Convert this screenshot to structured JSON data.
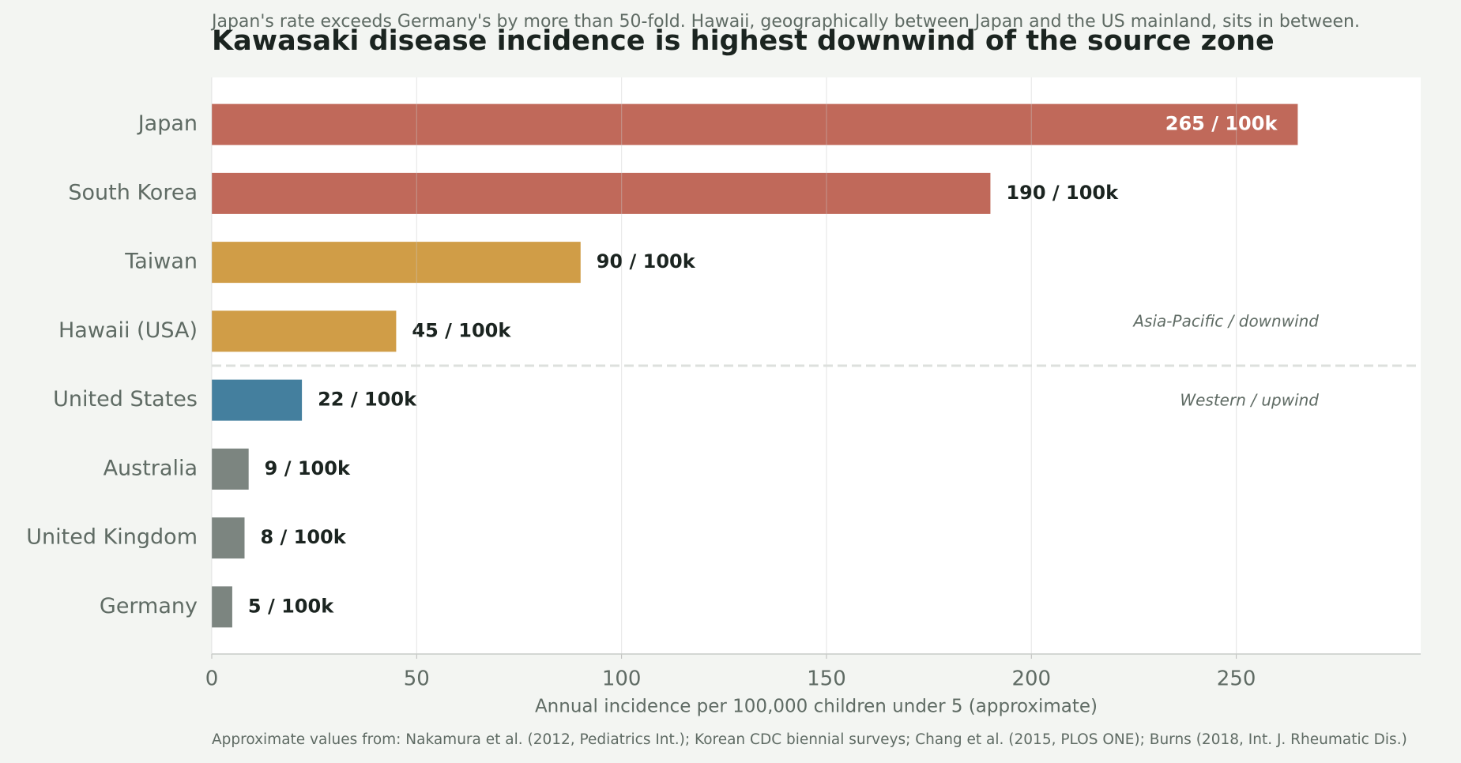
{
  "chart_data": {
    "type": "bar",
    "orientation": "horizontal",
    "title": "Kawasaki disease incidence is highest downwind of the source zone",
    "subtitle": "Japan's rate exceeds Germany's by more than 50-fold. Hawaii, geographically between Japan and the US mainland, sits in between.",
    "x_label": "Annual incidence per 100,000 children under 5 (approximate)",
    "source": "Approximate values from: Nakamura et al. (2012, Pediatrics Int.); Korean CDC biennial surveys; Chang et al. (2015, PLOS ONE); Burns (2018, Int. J. Rheumatic Dis.)",
    "categories": [
      "Japan",
      "South Korea",
      "Taiwan",
      "Hawaii (USA)",
      "United States",
      "Australia",
      "United Kingdom",
      "Germany"
    ],
    "values": [
      265,
      190,
      90,
      45,
      22,
      9,
      8,
      5
    ],
    "value_labels": [
      "265 / 100k",
      "190 / 100k",
      "90 / 100k",
      "45 / 100k",
      "22 / 100k",
      "9 / 100k",
      "8 / 100k",
      "5 / 100k"
    ],
    "colors": [
      "#c0695a",
      "#c0695a",
      "#d09d47",
      "#d09d47",
      "#447f9e",
      "#7c8580",
      "#7c8580",
      "#7c8580"
    ],
    "annotations": [
      "Asia-Pacific / downwind",
      "Western / upwind"
    ],
    "xlim": [
      0,
      295
    ],
    "xticks": [
      0,
      50,
      100,
      150,
      200,
      250
    ],
    "grid": true
  }
}
